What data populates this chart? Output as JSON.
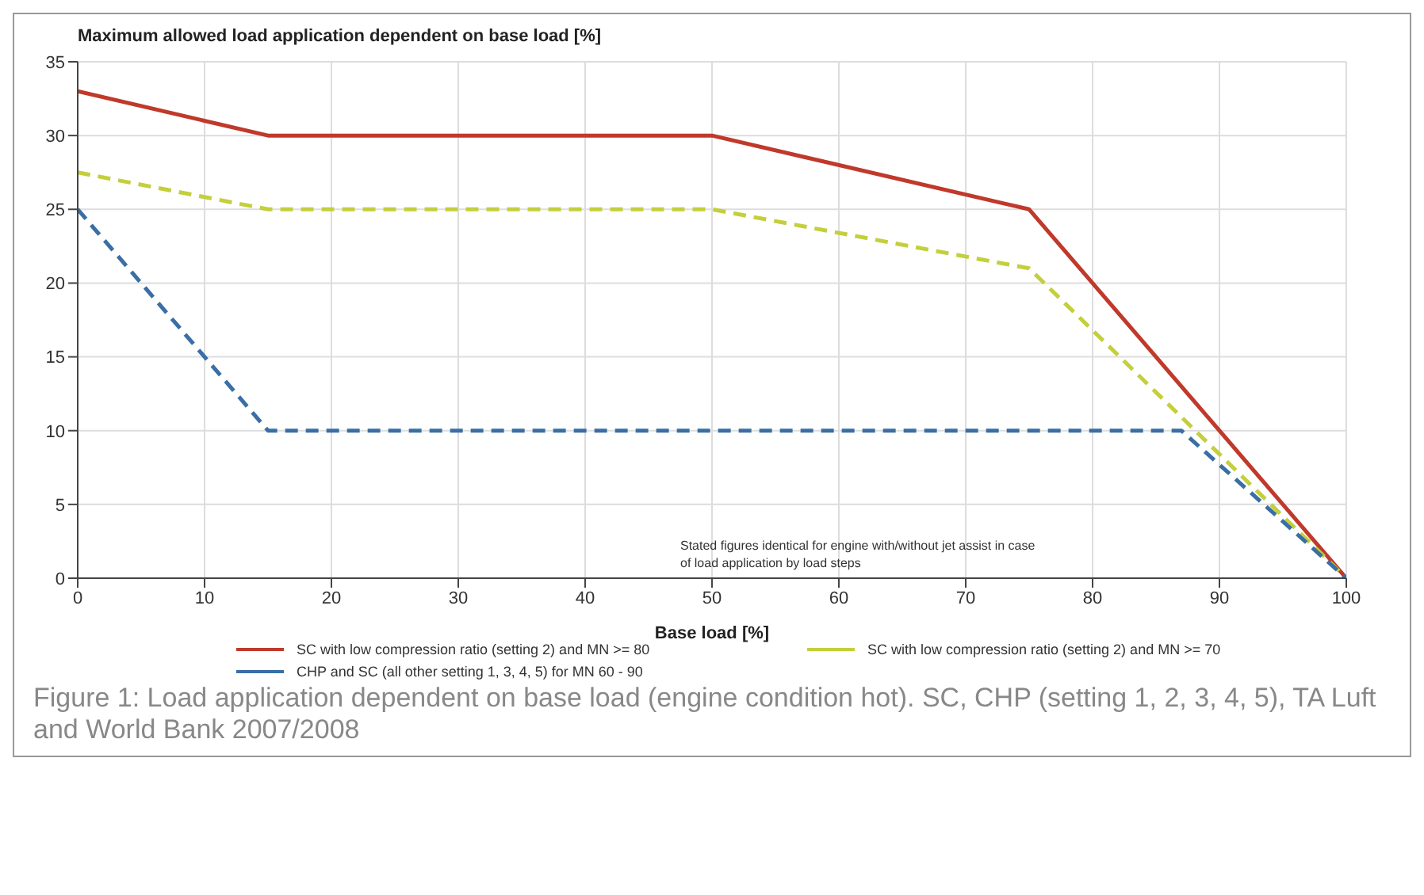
{
  "chart_data": {
    "type": "line",
    "title": "Maximum allowed load application dependent on base load  [%]",
    "xlabel": "Base load [%]",
    "xlim": [
      0,
      100
    ],
    "xticks": [
      0,
      10,
      20,
      30,
      40,
      50,
      60,
      70,
      80,
      90,
      100
    ],
    "ylim": [
      0,
      35
    ],
    "yticks": [
      0,
      5,
      10,
      15,
      20,
      25,
      30,
      35
    ],
    "grid": true,
    "legend": "bottom",
    "marker": "none",
    "series": [
      {
        "name": "SC with low compression ratio (setting 2) and MN >= 80",
        "color": "#c0392b",
        "line_style": "solid",
        "x": [
          0,
          15,
          50,
          75,
          100
        ],
        "values": [
          33,
          30,
          30,
          25,
          0
        ]
      },
      {
        "name": "SC with low compression ratio (setting 2) and MN >= 70",
        "color": "#c3cf3c",
        "line_style": "dashed",
        "x": [
          0,
          15,
          50,
          75,
          100
        ],
        "values": [
          27.5,
          25,
          25,
          21,
          0
        ]
      },
      {
        "name": "CHP and SC (all other setting 1, 3, 4, 5) for MN 60 - 90",
        "color": "#3a6ea5",
        "line_style": "dashed",
        "x": [
          0,
          15,
          87,
          100
        ],
        "values": [
          25,
          10,
          10,
          0
        ]
      }
    ],
    "annotations": [
      "Stated figures identical for engine with/without jet assist in case of load application by load steps",
      "Figure 1: Load application dependent on base load (engine condition hot). SC, CHP (setting 1, 2, 3, 4, 5), TA Luft and World Bank 2007/2008"
    ]
  }
}
